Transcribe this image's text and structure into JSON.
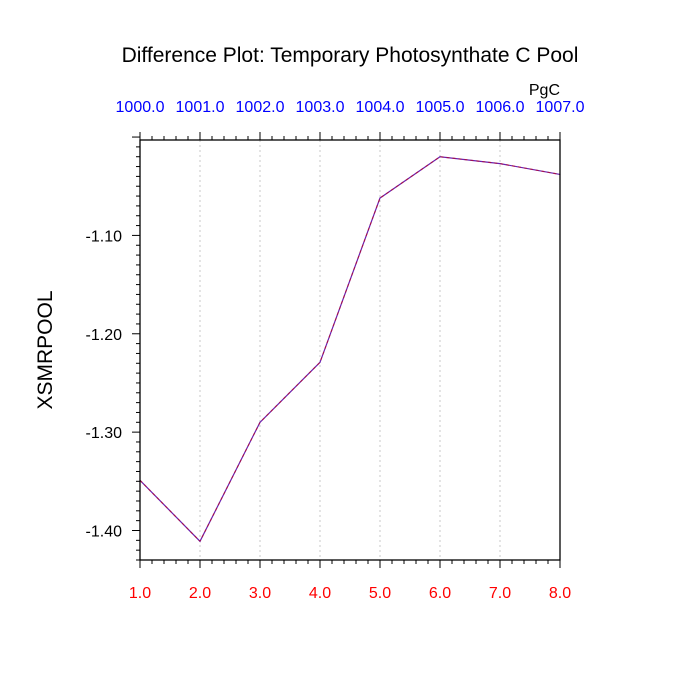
{
  "chart_data": {
    "type": "line",
    "title": "Difference Plot: Temporary Photosynthate C Pool",
    "ylabel": "XSMRPOOL",
    "units": "PgC",
    "xlim": [
      1.0,
      8.0
    ],
    "ylim": [
      -1.43,
      -1.003
    ],
    "grid": "x-dotted",
    "x": [
      1.0,
      2.0,
      3.0,
      4.0,
      5.0,
      6.0,
      7.0,
      8.0
    ],
    "series": [
      {
        "values": [
          -1.349,
          -1.411,
          -1.29,
          -1.229,
          -1.062,
          -1.02,
          -1.027,
          -1.038
        ],
        "color": "#6a1fb0",
        "dash_color": "#cc0000"
      }
    ],
    "bottom_ticks": {
      "values": [
        1.0,
        2.0,
        3.0,
        4.0,
        5.0,
        6.0,
        7.0,
        8.0
      ],
      "labels": [
        "1.0",
        "2.0",
        "3.0",
        "4.0",
        "5.0",
        "6.0",
        "7.0",
        "8.0"
      ],
      "color": "#ff0000"
    },
    "top_ticks": {
      "values": [
        1.0,
        2.0,
        3.0,
        4.0,
        5.0,
        6.0,
        7.0,
        8.0
      ],
      "labels": [
        "1000.0",
        "1001.0",
        "1002.0",
        "1003.0",
        "1004.0",
        "1005.0",
        "1006.0",
        "1007.0"
      ],
      "color": "#0000ff"
    },
    "y_ticks": {
      "values": [
        -1.1,
        -1.2,
        -1.3,
        -1.4
      ],
      "labels": [
        "-1.10",
        "-1.20",
        "-1.30",
        "-1.40"
      ]
    }
  }
}
